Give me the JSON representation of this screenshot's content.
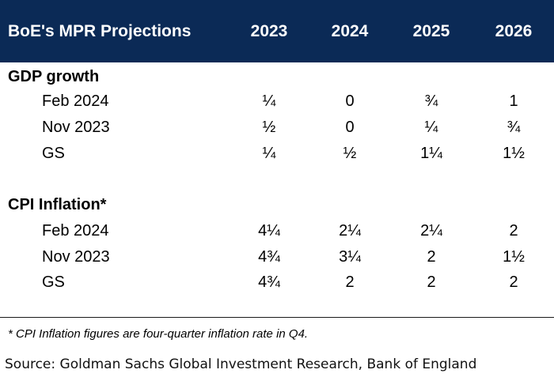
{
  "table": {
    "title": "BoE's MPR Projections",
    "years": [
      "2023",
      "2024",
      "2025",
      "2026"
    ],
    "sections": [
      {
        "title": "GDP growth",
        "rows": [
          {
            "label": "Feb 2024",
            "values": [
              "¼",
              "0",
              "¾",
              "1"
            ]
          },
          {
            "label": "Nov 2023",
            "values": [
              "½",
              "0",
              "¼",
              "¾"
            ]
          },
          {
            "label": "GS",
            "values": [
              "¼",
              "½",
              "1¼",
              "1½"
            ]
          }
        ]
      },
      {
        "title": "CPI Inflation*",
        "rows": [
          {
            "label": "Feb 2024",
            "values": [
              "4¼",
              "2¼",
              "2¼",
              "2"
            ]
          },
          {
            "label": "Nov 2023",
            "values": [
              "4¾",
              "3¼",
              "2",
              "1½"
            ]
          },
          {
            "label": "GS",
            "values": [
              "4¾",
              "2",
              "2",
              "2"
            ]
          }
        ]
      }
    ],
    "footnote": "* CPI Inflation figures are four-quarter inflation rate in Q4.",
    "source": "Source: Goldman Sachs Global Investment Research, Bank of England"
  },
  "colors": {
    "header_bg": "#0b2a56",
    "header_text": "#ffffff"
  }
}
